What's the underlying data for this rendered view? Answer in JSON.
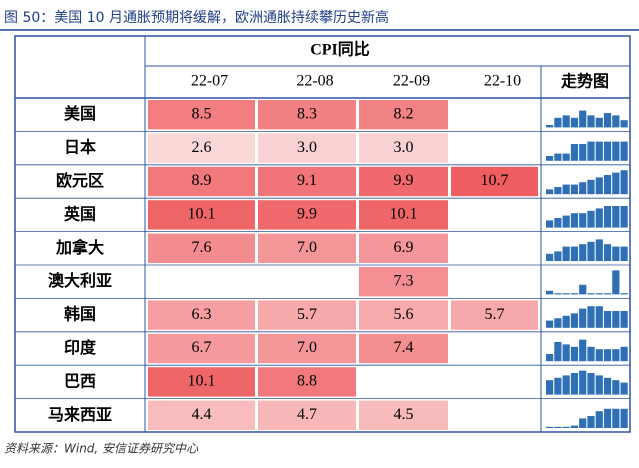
{
  "header": {
    "title": "图 50：美国 10 月通胀预期将缓解，欧洲通胀持续攀历史新高"
  },
  "table": {
    "group_header": "CPI同比",
    "columns": [
      "22-07",
      "22-08",
      "22-09",
      "22-10"
    ],
    "trend_header": "走势图",
    "rows": [
      {
        "name": "美国",
        "cells": [
          "8.5",
          "8.3",
          "8.2",
          null
        ],
        "trend": [
          0.1,
          0.4,
          0.5,
          0.4,
          0.7,
          0.5,
          0.4,
          0.6,
          0.5,
          0.3
        ]
      },
      {
        "name": "日本",
        "cells": [
          "2.6",
          "3.0",
          "3.0",
          null
        ],
        "trend": [
          0.2,
          0.3,
          0.3,
          0.7,
          0.7,
          0.8,
          0.8,
          0.8,
          0.8,
          0.8
        ]
      },
      {
        "name": "欧元区",
        "cells": [
          "8.9",
          "9.1",
          "9.9",
          "10.7"
        ],
        "trend": [
          0.2,
          0.3,
          0.4,
          0.4,
          0.5,
          0.6,
          0.7,
          0.8,
          0.9,
          1.0
        ]
      },
      {
        "name": "英国",
        "cells": [
          "10.1",
          "9.9",
          "10.1",
          null
        ],
        "trend": [
          0.3,
          0.4,
          0.5,
          0.6,
          0.6,
          0.7,
          0.8,
          0.9,
          0.9,
          0.9
        ]
      },
      {
        "name": "加拿大",
        "cells": [
          "7.6",
          "7.0",
          "6.9",
          null
        ],
        "trend": [
          0.3,
          0.4,
          0.6,
          0.6,
          0.7,
          0.8,
          0.9,
          0.7,
          0.6,
          0.6
        ]
      },
      {
        "name": "澳大利亚",
        "cells": [
          null,
          null,
          "7.3",
          null
        ],
        "trend": [
          0.15,
          0.0,
          0.0,
          0.0,
          0.4,
          0.0,
          0.0,
          0.0,
          1.0,
          0.0
        ]
      },
      {
        "name": "韩国",
        "cells": [
          "6.3",
          "5.7",
          "5.6",
          "5.7"
        ],
        "trend": [
          0.3,
          0.4,
          0.5,
          0.6,
          0.8,
          0.9,
          0.9,
          0.7,
          0.7,
          0.7
        ]
      },
      {
        "name": "印度",
        "cells": [
          "6.7",
          "7.0",
          "7.4",
          null
        ],
        "trend": [
          0.3,
          0.8,
          0.7,
          0.6,
          0.9,
          0.6,
          0.5,
          0.5,
          0.5,
          0.6
        ]
      },
      {
        "name": "巴西",
        "cells": [
          "10.1",
          "8.8",
          null,
          null
        ],
        "trend": [
          0.6,
          0.7,
          0.8,
          0.9,
          1.0,
          0.9,
          0.8,
          0.7,
          0.6,
          0.5
        ]
      },
      {
        "name": "马来西亚",
        "cells": [
          "4.4",
          "4.7",
          "4.5",
          null
        ],
        "trend": [
          0.05,
          0.05,
          0.05,
          0.1,
          0.4,
          0.5,
          0.7,
          0.8,
          0.8,
          0.8
        ]
      }
    ]
  },
  "footer": {
    "source": "资料来源：Wind, 安信证券研究中心"
  }
}
